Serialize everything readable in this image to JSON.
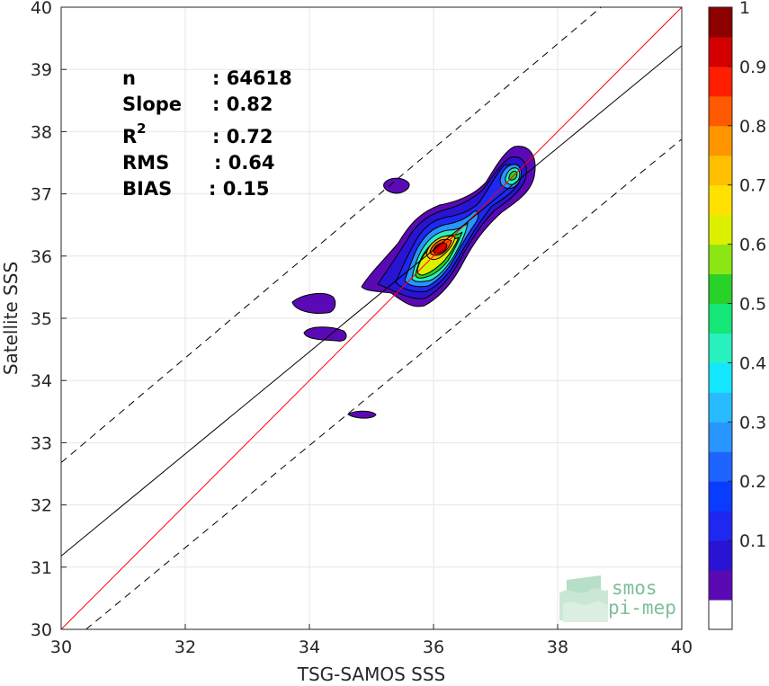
{
  "chart_data": {
    "type": "heatmap",
    "subtype": "filled-contour-density-scatter",
    "xlabel": "TSG-SAMOS SSS",
    "ylabel": "Satellite SSS",
    "xlim": [
      30,
      40
    ],
    "ylim": [
      30,
      40
    ],
    "xticks": [
      "30",
      "32",
      "34",
      "36",
      "38",
      "40"
    ],
    "yticks": [
      "30",
      "31",
      "32",
      "33",
      "34",
      "35",
      "36",
      "37",
      "38",
      "39",
      "40"
    ],
    "grid": true,
    "stats": [
      {
        "key": "n",
        "value": ": 64618"
      },
      {
        "key": "Slope",
        "value": ": 0.82"
      },
      {
        "key": "R",
        "sup": "2",
        "value": ": 0.72"
      },
      {
        "key": "RMS",
        "value": ": 0.64"
      },
      {
        "key": "BIAS",
        "value": ": 0.15"
      }
    ],
    "lines": {
      "identity": {
        "from": [
          30,
          30
        ],
        "to": [
          40,
          40
        ],
        "color": "#ff0000"
      },
      "regression": {
        "from": [
          30,
          31.18
        ],
        "to": [
          40,
          39.38
        ],
        "color": "#000000"
      },
      "upper_bound": {
        "from": [
          30,
          32.68
        ],
        "to": [
          38.7,
          40
        ],
        "color": "#000000",
        "style": "dashed"
      },
      "lower_bound": {
        "from": [
          30.4,
          30
        ],
        "to": [
          40,
          37.88
        ],
        "color": "#000000",
        "style": "dashed"
      }
    },
    "density_peak": {
      "x": 36.15,
      "y": 36.15,
      "value": 1.0
    },
    "colorbar": {
      "min": 0,
      "max": 1,
      "levels": 20,
      "ticks": [
        "0.1",
        "0.2",
        "0.3",
        "0.4",
        "0.5",
        "0.6",
        "0.7",
        "0.8",
        "0.9",
        "1"
      ],
      "colors": [
        "#ffffff",
        "#5a0ab4",
        "#2814d2",
        "#1e28f0",
        "#0a3cff",
        "#1e64ff",
        "#2896ff",
        "#28bbff",
        "#14e6ff",
        "#28f0be",
        "#14e678",
        "#28d228",
        "#8ce614",
        "#dcf000",
        "#ffe100",
        "#ffbe00",
        "#ff9600",
        "#ff5a00",
        "#ff1e00",
        "#d20000",
        "#8c0000"
      ]
    },
    "clusters": [
      {
        "x": 36.5,
        "y": 36.45,
        "level": 1,
        "region": "main"
      },
      {
        "x": 35.45,
        "y": 37.15,
        "level": 1,
        "region": "isolated"
      },
      {
        "x": 34.05,
        "y": 35.25,
        "level": 1,
        "region": "isolated"
      },
      {
        "x": 34.25,
        "y": 34.75,
        "level": 1,
        "region": "isolated"
      },
      {
        "x": 34.85,
        "y": 33.45,
        "level": 1,
        "region": "isolated"
      }
    ]
  },
  "logo": {
    "line1": "smos",
    "line2": "pi-mep"
  }
}
